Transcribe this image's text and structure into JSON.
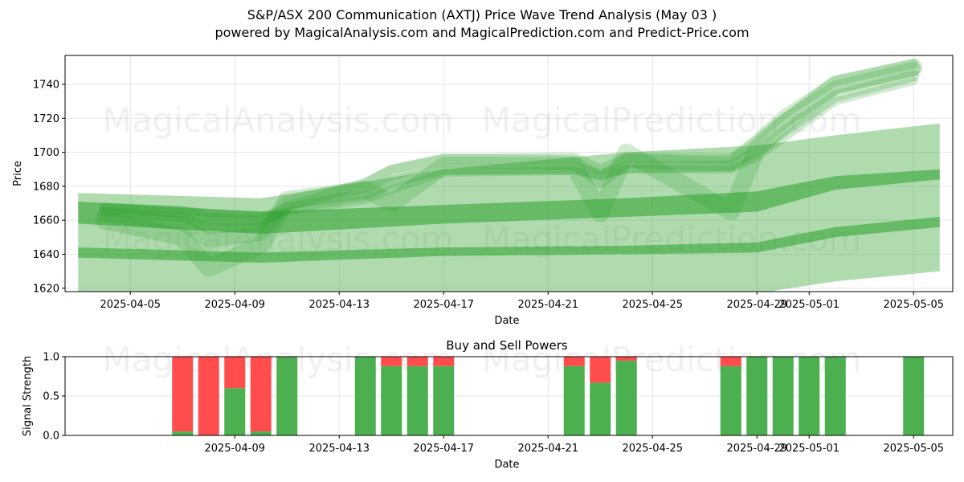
{
  "header": {
    "title": "S&P/ASX 200 Communication (AXTJ) Price Wave Trend Analysis (May 03 )",
    "subtitle": "powered by MagicalAnalysis.com and MagicalPrediction.com and Predict-Price.com"
  },
  "watermarks": [
    "MagicalAnalysis.com",
    "MagicalPrediction.com"
  ],
  "colors": {
    "green": "#2ca02c",
    "buy": "#4caf50",
    "sell": "#ff4d4d"
  },
  "chart_data": [
    {
      "type": "area",
      "name": "price-wave",
      "xlabel": "Date",
      "ylabel": "Price",
      "x_range": [
        "2025-04-02T12:00",
        "2025-05-06T12:00"
      ],
      "ylim": [
        1618,
        1757
      ],
      "yticks": [
        1620,
        1640,
        1660,
        1680,
        1700,
        1720,
        1740
      ],
      "xticks": [
        "2025-04-05",
        "2025-04-09",
        "2025-04-13",
        "2025-04-17",
        "2025-04-21",
        "2025-04-25",
        "2025-04-29",
        "2025-05-01",
        "2025-05-05"
      ],
      "grid": true,
      "bands": [
        {
          "x": [
            "2025-04-03",
            "2025-04-10",
            "2025-04-17",
            "2025-04-24",
            "2025-04-29",
            "2025-05-02",
            "2025-05-06"
          ],
          "upper": [
            1671,
            1665,
            1669,
            1673,
            1677,
            1686,
            1690
          ],
          "lower": [
            1658,
            1652,
            1658,
            1662,
            1665,
            1678,
            1684
          ]
        },
        {
          "x": [
            "2025-04-03",
            "2025-04-10",
            "2025-04-17",
            "2025-04-24",
            "2025-04-29",
            "2025-05-02",
            "2025-05-06"
          ],
          "upper": [
            1644,
            1641,
            1644,
            1645,
            1647,
            1656,
            1662
          ],
          "lower": [
            1638,
            1635,
            1639,
            1640,
            1641,
            1650,
            1656
          ]
        },
        {
          "x": [
            "2025-04-03",
            "2025-04-10",
            "2025-04-17",
            "2025-04-24",
            "2025-04-29",
            "2025-05-02",
            "2025-05-06"
          ],
          "upper": [
            1676,
            1673,
            1690,
            1700,
            1704,
            1710,
            1717
          ],
          "lower": [
            1617,
            1617,
            1617,
            1617,
            1617,
            1624,
            1630
          ]
        }
      ],
      "series": [
        {
          "x": [
            "2025-04-04",
            "2025-04-07",
            "2025-04-08",
            "2025-04-10",
            "2025-04-11",
            "2025-04-14",
            "2025-04-15",
            "2025-04-17",
            "2025-04-22",
            "2025-04-23",
            "2025-04-24",
            "2025-04-28",
            "2025-04-29",
            "2025-04-30",
            "2025-05-02",
            "2025-05-05"
          ],
          "y": [
            1667,
            1665,
            1661,
            1660,
            1667,
            1675,
            1683,
            1690,
            1691,
            1687,
            1691,
            1692,
            1700,
            1712,
            1733,
            1745
          ]
        },
        {
          "x": [
            "2025-04-04",
            "2025-04-07",
            "2025-04-08",
            "2025-04-10",
            "2025-04-11",
            "2025-04-14",
            "2025-04-15",
            "2025-04-17",
            "2025-04-22",
            "2025-04-23",
            "2025-04-24",
            "2025-04-28",
            "2025-04-29",
            "2025-04-30",
            "2025-05-02",
            "2025-05-05"
          ],
          "y": [
            1663,
            1658,
            1648,
            1652,
            1670,
            1680,
            1688,
            1695,
            1694,
            1683,
            1695,
            1693,
            1705,
            1718,
            1738,
            1749
          ]
        },
        {
          "x": [
            "2025-04-04",
            "2025-04-07",
            "2025-04-08",
            "2025-04-10",
            "2025-04-11",
            "2025-04-14",
            "2025-04-15",
            "2025-04-17",
            "2025-04-22",
            "2025-04-23",
            "2025-04-24",
            "2025-04-28",
            "2025-04-29",
            "2025-04-30",
            "2025-05-02",
            "2025-05-05"
          ],
          "y": [
            1660,
            1650,
            1632,
            1645,
            1672,
            1678,
            1670,
            1692,
            1692,
            1664,
            1700,
            1665,
            1702,
            1716,
            1740,
            1750
          ]
        },
        {
          "x": [
            "2025-04-04",
            "2025-04-07",
            "2025-04-08",
            "2025-04-10",
            "2025-04-11",
            "2025-04-14",
            "2025-04-15",
            "2025-04-17",
            "2025-04-22",
            "2025-04-23",
            "2025-04-24",
            "2025-04-28",
            "2025-04-29",
            "2025-04-30",
            "2025-05-02",
            "2025-05-05"
          ],
          "y": [
            1665,
            1662,
            1655,
            1656,
            1668,
            1682,
            1690,
            1696,
            1697,
            1690,
            1697,
            1696,
            1708,
            1722,
            1742,
            1752
          ]
        },
        {
          "x": [
            "2025-04-04",
            "2025-04-07",
            "2025-04-08",
            "2025-04-10",
            "2025-04-11",
            "2025-04-14",
            "2025-04-15",
            "2025-04-17",
            "2025-04-22",
            "2025-04-23",
            "2025-04-24",
            "2025-04-28",
            "2025-04-29",
            "2025-04-30",
            "2025-05-02",
            "2025-05-05"
          ],
          "y": [
            1668,
            1666,
            1664,
            1663,
            1665,
            1672,
            1678,
            1688,
            1689,
            1686,
            1690,
            1690,
            1697,
            1708,
            1730,
            1742
          ]
        }
      ]
    },
    {
      "type": "bar",
      "name": "buy-sell-powers",
      "title": "Buy and Sell Powers",
      "xlabel": "Date",
      "ylabel": "Signal Strength",
      "x_range": [
        "2025-04-02T12:00",
        "2025-05-06T12:00"
      ],
      "ylim": [
        0,
        1
      ],
      "yticks": [
        0.0,
        0.5,
        1.0
      ],
      "xticks": [
        "2025-04-09",
        "2025-04-13",
        "2025-04-17",
        "2025-04-21",
        "2025-04-25",
        "2025-04-29",
        "2025-05-01",
        "2025-05-05"
      ],
      "grid": true,
      "bars": [
        {
          "date": "2025-04-07",
          "buy": 0.05,
          "sell": 0.95
        },
        {
          "date": "2025-04-08",
          "buy": 0.0,
          "sell": 1.0
        },
        {
          "date": "2025-04-09",
          "buy": 0.6,
          "sell": 0.4
        },
        {
          "date": "2025-04-10",
          "buy": 0.05,
          "sell": 0.95
        },
        {
          "date": "2025-04-11",
          "buy": 1.0,
          "sell": 0.0
        },
        {
          "date": "2025-04-14",
          "buy": 1.0,
          "sell": 0.0
        },
        {
          "date": "2025-04-15",
          "buy": 0.88,
          "sell": 0.12
        },
        {
          "date": "2025-04-16",
          "buy": 0.88,
          "sell": 0.12
        },
        {
          "date": "2025-04-17",
          "buy": 0.88,
          "sell": 0.12
        },
        {
          "date": "2025-04-22",
          "buy": 0.88,
          "sell": 0.12
        },
        {
          "date": "2025-04-23",
          "buy": 0.67,
          "sell": 0.33
        },
        {
          "date": "2025-04-24",
          "buy": 0.95,
          "sell": 0.05
        },
        {
          "date": "2025-04-28",
          "buy": 0.88,
          "sell": 0.12
        },
        {
          "date": "2025-04-29",
          "buy": 1.0,
          "sell": 0.0
        },
        {
          "date": "2025-04-30",
          "buy": 1.0,
          "sell": 0.0
        },
        {
          "date": "2025-05-01",
          "buy": 1.0,
          "sell": 0.0
        },
        {
          "date": "2025-05-02",
          "buy": 1.0,
          "sell": 0.0
        },
        {
          "date": "2025-05-05",
          "buy": 1.0,
          "sell": 0.0
        }
      ]
    }
  ]
}
